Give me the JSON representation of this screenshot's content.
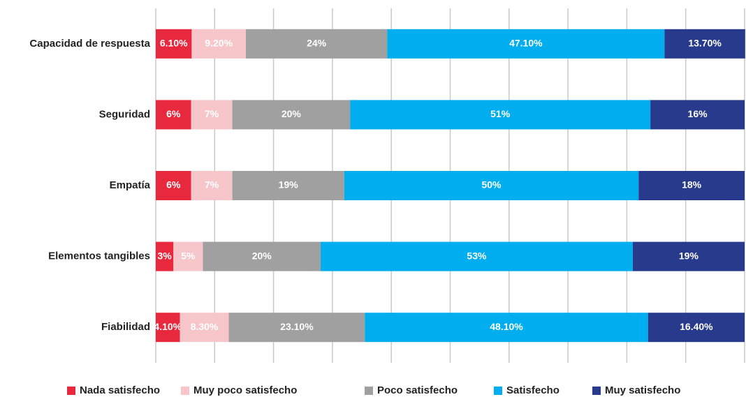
{
  "chart_data": {
    "type": "stacked-bar-horizontal",
    "categories": [
      "Capacidad de respuesta",
      "Seguridad",
      "Empatía",
      "Elementos tangibles",
      "Fiabilidad"
    ],
    "series": [
      {
        "name": "Nada satisfecho",
        "color": "#e8283c",
        "values": [
          6.1,
          6,
          6,
          3,
          4.1
        ],
        "value_labels": [
          "6.10%",
          "6%",
          "6%",
          "3%",
          "4.10%"
        ]
      },
      {
        "name": "Muy poco satisfecho",
        "color": "#f7c6cb",
        "values": [
          9.2,
          7,
          7,
          5,
          8.3
        ],
        "value_labels": [
          "9.20%",
          "7%",
          "7%",
          "5%",
          "8.30%"
        ]
      },
      {
        "name": "Poco satisfecho",
        "color": "#a0a0a0",
        "values": [
          24,
          20,
          19,
          20,
          23.1
        ],
        "value_labels": [
          "24%",
          "20%",
          "19%",
          "20%",
          "23.10%"
        ]
      },
      {
        "name": "Satisfecho",
        "color": "#00aeef",
        "values": [
          47.1,
          51,
          50,
          53,
          48.1
        ],
        "value_labels": [
          "47.10%",
          "51%",
          "50%",
          "53%",
          "48.10%"
        ]
      },
      {
        "name": "Muy satisfecho",
        "color": "#283a8c",
        "values": [
          13.7,
          16,
          18,
          19,
          16.4
        ],
        "value_labels": [
          "13.70%",
          "16%",
          "18%",
          "19%",
          "16.40%"
        ]
      }
    ],
    "xlim": [
      0,
      100
    ],
    "xticks": [
      0,
      10,
      20,
      30,
      40,
      50,
      60,
      70,
      80,
      90,
      100
    ],
    "grid": true,
    "legend": "bottom"
  }
}
